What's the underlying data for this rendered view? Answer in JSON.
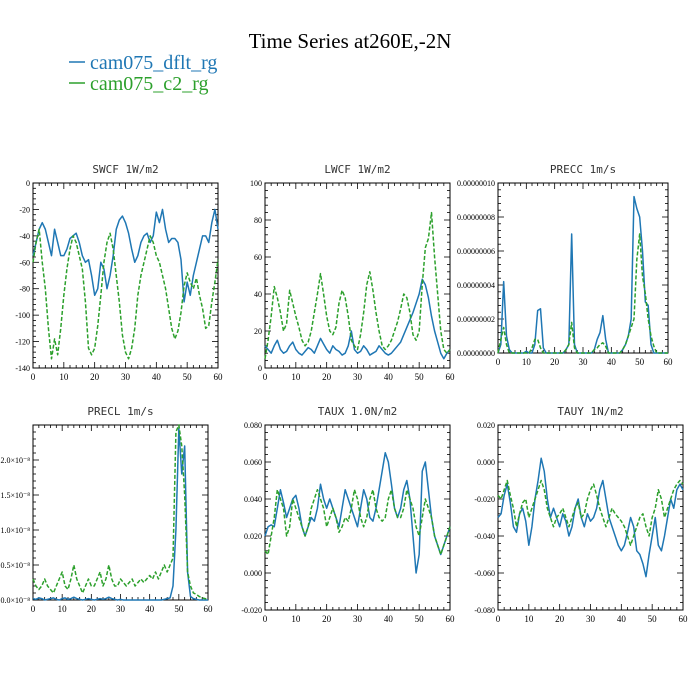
{
  "page": {
    "title": "Time Series at260E,-2N"
  },
  "legend": {
    "placement": "top-left",
    "entries": [
      {
        "label": "cam075_dflt_rg",
        "color": "#1f77b4",
        "dash": "solid"
      },
      {
        "label": "cam075_c2_rg",
        "color": "#2ca02c",
        "dash": "dashed"
      }
    ]
  },
  "chart_data": [
    {
      "type": "line",
      "title": "SWCF   1W/m2",
      "xlim": [
        0,
        60
      ],
      "ylim": [
        -140,
        0
      ],
      "xticks": [
        0,
        10,
        20,
        30,
        40,
        50,
        60
      ],
      "xtick_labels": [
        "0",
        "10",
        "20",
        "30",
        "40",
        "50",
        "60"
      ],
      "yticks": [
        -140,
        -120,
        -100,
        -80,
        -60,
        -40,
        -20,
        0
      ],
      "ytick_labels": [
        "-140",
        "-120",
        "-100",
        "-80",
        "-60",
        "-40",
        "-20",
        "0"
      ],
      "series": [
        {
          "name": "cam075_dflt_rg",
          "color": "#1f77b4",
          "dash": "solid",
          "values": [
            -55,
            -45,
            -35,
            -30,
            -35,
            -45,
            -55,
            -35,
            -45,
            -55,
            -55,
            -50,
            -42,
            -40,
            -38,
            -45,
            -55,
            -60,
            -58,
            -70,
            -85,
            -80,
            -60,
            -65,
            -80,
            -70,
            -55,
            -35,
            -28,
            -25,
            -30,
            -38,
            -50,
            -60,
            -55,
            -45,
            -40,
            -38,
            -45,
            -40,
            -22,
            -30,
            -20,
            -35,
            -45,
            -42,
            -42,
            -45,
            -58,
            -90,
            -75,
            -85,
            -70,
            -60,
            -50,
            -40,
            -40,
            -45,
            -30,
            -20,
            -35
          ]
        },
        {
          "name": "cam075_c2_rg",
          "color": "#2ca02c",
          "dash": "dashed",
          "values": [
            -60,
            -45,
            -35,
            -60,
            -80,
            -110,
            -133,
            -118,
            -130,
            -110,
            -85,
            -65,
            -50,
            -40,
            -45,
            -55,
            -65,
            -90,
            -125,
            -130,
            -125,
            -108,
            -85,
            -60,
            -45,
            -38,
            -50,
            -70,
            -90,
            -115,
            -128,
            -133,
            -125,
            -110,
            -85,
            -70,
            -60,
            -50,
            -40,
            -45,
            -55,
            -60,
            -70,
            -80,
            -95,
            -110,
            -118,
            -112,
            -98,
            -78,
            -68,
            -75,
            -80,
            -72,
            -85,
            -95,
            -110,
            -108,
            -90,
            -75,
            -58
          ]
        }
      ]
    },
    {
      "type": "line",
      "title": "LWCF   1W/m2",
      "xlim": [
        0,
        60
      ],
      "ylim": [
        0,
        100
      ],
      "xticks": [
        0,
        10,
        20,
        30,
        40,
        50,
        60
      ],
      "xtick_labels": [
        "0",
        "10",
        "20",
        "30",
        "40",
        "50",
        "60"
      ],
      "yticks": [
        0,
        20,
        40,
        60,
        80,
        100
      ],
      "ytick_labels": [
        "0",
        "20",
        "40",
        "60",
        "80",
        "100"
      ],
      "series": [
        {
          "name": "cam075_dflt_rg",
          "color": "#1f77b4",
          "dash": "solid",
          "values": [
            12,
            10,
            8,
            12,
            15,
            10,
            8,
            9,
            12,
            14,
            10,
            8,
            7,
            9,
            11,
            10,
            8,
            12,
            16,
            13,
            10,
            8,
            12,
            10,
            9,
            7,
            8,
            12,
            20,
            10,
            8,
            9,
            12,
            10,
            7,
            8,
            9,
            12,
            10,
            8,
            7,
            8,
            10,
            12,
            14,
            18,
            22,
            26,
            30,
            35,
            40,
            48,
            45,
            38,
            28,
            20,
            14,
            8,
            5,
            8,
            10
          ]
        },
        {
          "name": "cam075_c2_rg",
          "color": "#2ca02c",
          "dash": "dashed",
          "values": [
            5,
            15,
            28,
            44,
            38,
            30,
            20,
            24,
            42,
            35,
            28,
            22,
            15,
            12,
            14,
            20,
            30,
            40,
            51,
            40,
            28,
            20,
            18,
            22,
            35,
            42,
            38,
            28,
            15,
            12,
            10,
            18,
            30,
            45,
            52,
            42,
            30,
            20,
            12,
            10,
            12,
            15,
            20,
            25,
            32,
            40,
            38,
            30,
            18,
            15,
            20,
            45,
            65,
            70,
            84,
            60,
            40,
            20,
            10,
            8,
            10
          ]
        }
      ]
    },
    {
      "type": "line",
      "title": "PRECC   1m/s",
      "xlim": [
        0,
        60
      ],
      "ylim": [
        0,
        1e-07
      ],
      "xticks": [
        0,
        10,
        20,
        30,
        40,
        50,
        60
      ],
      "xtick_labels": [
        "0",
        "10",
        "20",
        "30",
        "40",
        "50",
        "60"
      ],
      "yticks": [
        0,
        2e-08,
        4e-08,
        6e-08,
        8e-08,
        1e-07
      ],
      "ytick_labels": [
        "0.00000000",
        "0.00000002",
        "0.00000004",
        "0.00000006",
        "0.00000008",
        "0.00000010"
      ],
      "series": [
        {
          "name": "cam075_dflt_rg",
          "color": "#1f77b4",
          "dash": "solid",
          "values": [
            0,
            5e-09,
            4.2e-08,
            1e-08,
            2e-09,
            0,
            0,
            0,
            0,
            0,
            1e-09,
            0,
            0,
            5e-09,
            2.5e-08,
            2.6e-08,
            3e-09,
            0,
            0,
            0,
            0,
            0,
            0,
            0,
            2e-09,
            5e-09,
            7e-08,
            5e-09,
            0,
            0,
            0,
            0,
            0,
            0,
            2e-09,
            8e-09,
            1.2e-08,
            2.2e-08,
            8e-09,
            0,
            0,
            0,
            0,
            0,
            2e-09,
            5e-09,
            1e-08,
            2e-08,
            9.2e-08,
            8.5e-08,
            8e-08,
            6e-08,
            3e-08,
            2.8e-08,
            5e-09,
            0,
            0,
            0,
            0,
            0,
            0
          ]
        },
        {
          "name": "cam075_c2_rg",
          "color": "#2ca02c",
          "dash": "dashed",
          "values": [
            0,
            8e-09,
            1.5e-08,
            5e-09,
            0,
            0,
            0,
            0,
            0,
            0,
            0,
            0,
            3e-09,
            8e-09,
            8e-09,
            3e-09,
            0,
            0,
            0,
            0,
            0,
            0,
            0,
            0,
            2e-09,
            5e-09,
            1.8e-08,
            3e-09,
            0,
            0,
            0,
            0,
            0,
            0,
            2e-09,
            3e-09,
            5e-09,
            6e-09,
            4e-09,
            0,
            0,
            0,
            0,
            0,
            2e-09,
            5e-09,
            1e-08,
            1.5e-08,
            2e-08,
            5.5e-08,
            7e-08,
            4.5e-08,
            3.5e-08,
            2e-08,
            1e-08,
            4e-09,
            0,
            0,
            0,
            0,
            0
          ]
        }
      ]
    },
    {
      "type": "line",
      "title": "PRECL   1m/s",
      "xlim": [
        0,
        60
      ],
      "ylim": [
        0,
        2.5e-08
      ],
      "xticks": [
        0,
        10,
        20,
        30,
        40,
        50,
        60
      ],
      "xtick_labels": [
        "0",
        "10",
        "20",
        "30",
        "40",
        "50",
        "60"
      ],
      "yticks": [
        0,
        5e-09,
        1e-08,
        1.5e-08,
        2e-08
      ],
      "ytick_labels": [
        "0.0×10⁻⁸",
        "0.5×10⁻⁸",
        "1.0×10⁻⁸",
        "1.5×10⁻⁸",
        "2.0×10⁻⁸"
      ],
      "series": [
        {
          "name": "cam075_dflt_rg",
          "color": "#1f77b4",
          "dash": "solid",
          "values": [
            2e-10,
            1e-10,
            3e-10,
            2e-10,
            0,
            1e-10,
            2e-10,
            3e-10,
            1e-10,
            0,
            2e-10,
            3e-10,
            1e-10,
            2e-10,
            4e-10,
            2e-10,
            1e-10,
            0,
            1e-10,
            2e-10,
            1e-10,
            0,
            1e-10,
            2e-10,
            1e-10,
            2e-10,
            4e-10,
            2e-10,
            1e-10,
            0,
            1e-10,
            0,
            0,
            0,
            0,
            0,
            0,
            0,
            0,
            0,
            0,
            0,
            0,
            0,
            0,
            1e-10,
            2e-10,
            3e-10,
            2e-09,
            1e-08,
            2.45e-08,
            1.8e-08,
            2.2e-08,
            4e-09,
            5e-10,
            2e-10,
            1e-10,
            0,
            0,
            0,
            0
          ]
        },
        {
          "name": "cam075_c2_rg",
          "color": "#2ca02c",
          "dash": "dashed",
          "values": [
            3e-09,
            2e-09,
            1.5e-09,
            2e-09,
            3e-09,
            2e-09,
            1.5e-09,
            1e-09,
            2e-09,
            3e-09,
            4e-09,
            2e-09,
            1.5e-09,
            3e-09,
            5e-09,
            3e-09,
            2e-09,
            1e-09,
            2e-09,
            3e-09,
            2e-09,
            2e-09,
            3e-09,
            4e-09,
            2e-09,
            3e-09,
            5e-09,
            3e-09,
            2e-09,
            2e-09,
            3e-09,
            2.5e-09,
            2e-09,
            2.5e-09,
            3e-09,
            2e-09,
            2.5e-09,
            3e-09,
            2.5e-09,
            3e-09,
            3.5e-09,
            3e-09,
            4e-09,
            3e-09,
            4e-09,
            5e-09,
            4e-09,
            5e-09,
            6e-09,
            2.4e-08,
            2.5e-08,
            2.2e-08,
            1.5e-08,
            4e-09,
            2e-09,
            1e-09,
            8e-10,
            5e-10,
            3e-10,
            2e-10,
            1e-10
          ]
        }
      ]
    },
    {
      "type": "line",
      "title": "TAUX   1.0N/m2",
      "xlim": [
        0,
        60
      ],
      "ylim": [
        -0.02,
        0.08
      ],
      "xticks": [
        0,
        10,
        20,
        30,
        40,
        50,
        60
      ],
      "xtick_labels": [
        "0",
        "10",
        "20",
        "30",
        "40",
        "50",
        "60"
      ],
      "yticks": [
        -0.02,
        0,
        0.02,
        0.04,
        0.06,
        0.08
      ],
      "ytick_labels": [
        "-0.020",
        "0.000",
        "0.020",
        "0.040",
        "0.060",
        "0.080"
      ],
      "series": [
        {
          "name": "cam075_dflt_rg",
          "color": "#1f77b4",
          "dash": "solid",
          "values": [
            0.02,
            0.025,
            0.026,
            0.025,
            0.035,
            0.045,
            0.038,
            0.03,
            0.035,
            0.04,
            0.042,
            0.035,
            0.025,
            0.02,
            0.025,
            0.03,
            0.028,
            0.035,
            0.048,
            0.04,
            0.035,
            0.04,
            0.035,
            0.03,
            0.025,
            0.035,
            0.045,
            0.04,
            0.035,
            0.03,
            0.025,
            0.035,
            0.045,
            0.04,
            0.03,
            0.028,
            0.035,
            0.045,
            0.055,
            0.065,
            0.06,
            0.048,
            0.035,
            0.03,
            0.035,
            0.045,
            0.05,
            0.04,
            0.02,
            0.0,
            0.01,
            0.055,
            0.06,
            0.045,
            0.03,
            0.02,
            0.015,
            0.01,
            0.015,
            0.02,
            0.025
          ]
        },
        {
          "name": "cam075_c2_rg",
          "color": "#2ca02c",
          "dash": "dashed",
          "values": [
            0.012,
            0.01,
            0.02,
            0.03,
            0.045,
            0.04,
            0.035,
            0.02,
            0.025,
            0.04,
            0.035,
            0.03,
            0.025,
            0.02,
            0.025,
            0.035,
            0.04,
            0.045,
            0.04,
            0.035,
            0.025,
            0.03,
            0.035,
            0.03,
            0.022,
            0.025,
            0.03,
            0.028,
            0.035,
            0.045,
            0.04,
            0.03,
            0.025,
            0.03,
            0.04,
            0.045,
            0.035,
            0.03,
            0.028,
            0.03,
            0.04,
            0.045,
            0.035,
            0.03,
            0.03,
            0.035,
            0.045,
            0.04,
            0.035,
            0.025,
            0.02,
            0.03,
            0.04,
            0.035,
            0.03,
            0.02,
            0.015,
            0.01,
            0.015,
            0.02,
            0.025
          ]
        }
      ]
    },
    {
      "type": "line",
      "title": "TAUY   1N/m2",
      "xlim": [
        0,
        60
      ],
      "ylim": [
        -0.08,
        0.02
      ],
      "xticks": [
        0,
        10,
        20,
        30,
        40,
        50,
        60
      ],
      "xtick_labels": [
        "0",
        "10",
        "20",
        "30",
        "40",
        "50",
        "60"
      ],
      "yticks": [
        -0.08,
        -0.06,
        -0.04,
        -0.02,
        0,
        0.02
      ],
      "ytick_labels": [
        "-0.080",
        "-0.060",
        "-0.040",
        "-0.020",
        "0.000",
        "0.020"
      ],
      "series": [
        {
          "name": "cam075_dflt_rg",
          "color": "#1f77b4",
          "dash": "solid",
          "values": [
            -0.03,
            -0.028,
            -0.018,
            -0.012,
            -0.022,
            -0.035,
            -0.038,
            -0.028,
            -0.025,
            -0.032,
            -0.045,
            -0.035,
            -0.02,
            -0.01,
            0.002,
            -0.005,
            -0.02,
            -0.03,
            -0.025,
            -0.03,
            -0.035,
            -0.028,
            -0.032,
            -0.04,
            -0.035,
            -0.025,
            -0.02,
            -0.03,
            -0.035,
            -0.028,
            -0.032,
            -0.03,
            -0.025,
            -0.015,
            -0.01,
            -0.02,
            -0.03,
            -0.035,
            -0.04,
            -0.045,
            -0.048,
            -0.045,
            -0.038,
            -0.03,
            -0.035,
            -0.048,
            -0.05,
            -0.055,
            -0.062,
            -0.05,
            -0.04,
            -0.03,
            -0.045,
            -0.048,
            -0.04,
            -0.03,
            -0.02,
            -0.025,
            -0.015,
            -0.012,
            -0.015
          ]
        },
        {
          "name": "cam075_c2_rg",
          "color": "#2ca02c",
          "dash": "dashed",
          "values": [
            -0.018,
            -0.02,
            -0.015,
            -0.01,
            -0.018,
            -0.025,
            -0.035,
            -0.028,
            -0.022,
            -0.02,
            -0.03,
            -0.025,
            -0.02,
            -0.015,
            -0.01,
            -0.015,
            -0.025,
            -0.03,
            -0.035,
            -0.03,
            -0.028,
            -0.025,
            -0.03,
            -0.035,
            -0.03,
            -0.025,
            -0.022,
            -0.03,
            -0.028,
            -0.02,
            -0.015,
            -0.012,
            -0.018,
            -0.025,
            -0.03,
            -0.035,
            -0.03,
            -0.025,
            -0.028,
            -0.03,
            -0.032,
            -0.035,
            -0.04,
            -0.045,
            -0.04,
            -0.035,
            -0.03,
            -0.028,
            -0.035,
            -0.04,
            -0.03,
            -0.025,
            -0.015,
            -0.02,
            -0.03,
            -0.025,
            -0.02,
            -0.015,
            -0.012,
            -0.01,
            -0.012
          ]
        }
      ]
    }
  ]
}
